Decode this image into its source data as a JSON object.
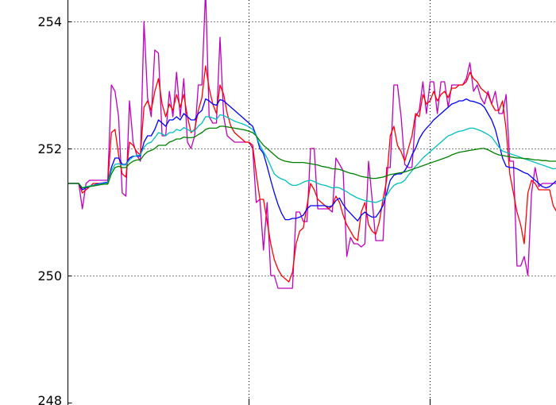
{
  "chart_data": {
    "type": "line",
    "title": "",
    "xlabel": "",
    "ylabel": "",
    "grid": true,
    "legend": "none",
    "xlim": [
      0,
      142
    ],
    "ylim": [
      248,
      254.5
    ],
    "y_ticks": [
      248,
      250,
      252,
      254
    ],
    "y_tick_labels": [
      "248",
      "250",
      "252",
      "254"
    ],
    "x_ticks": [
      50,
      100
    ],
    "series": [
      {
        "color": "#bf00bf",
        "values": [
          251.45,
          251.45,
          251.45,
          251.45,
          251.05,
          251.45,
          251.5,
          251.5,
          251.5,
          251.5,
          251.5,
          251.5,
          253,
          252.9,
          252.5,
          251.3,
          251.25,
          252.75,
          252.1,
          251.9,
          251.8,
          254,
          252.8,
          252.5,
          253.55,
          253.5,
          252.2,
          252.2,
          252.9,
          252.5,
          253.2,
          252.5,
          253.1,
          252.1,
          252,
          252.2,
          253,
          253,
          254.5,
          252.5,
          252.4,
          252.4,
          253.75,
          252.5,
          252.2,
          252.15,
          252.1,
          252.1,
          252.1,
          252.1,
          252.1,
          252,
          251.15,
          251.2,
          250.4,
          251.15,
          250,
          250,
          249.8,
          249.8,
          249.8,
          249.8,
          249.8,
          251,
          251,
          250.85,
          250.85,
          252,
          252,
          251.05,
          251.05,
          251.05,
          251.05,
          251,
          251.85,
          251.75,
          251.65,
          250.3,
          250.6,
          250.5,
          250.5,
          250.45,
          250.5,
          251.8,
          251.2,
          250.55,
          250.55,
          250.55,
          251.7,
          251.7,
          253,
          253,
          252.5,
          251.75,
          251.7,
          251.7,
          252.5,
          252.6,
          253.05,
          252.55,
          253.05,
          253.05,
          252.55,
          253.05,
          253.05,
          252.65,
          253,
          253,
          253,
          253,
          253.1,
          253.35,
          252.9,
          253,
          252.8,
          252.7,
          252.9,
          252.7,
          252.9,
          252.55,
          252.55,
          252.85,
          251.8,
          251.8,
          250.15,
          250.15,
          250.3,
          250,
          251.3,
          251.7,
          251.4,
          251.45,
          251.45,
          251.45,
          251.45,
          251.45,
          250.8,
          250.8,
          250.8,
          251.6,
          251.6,
          251.75,
          251.55,
          252.7
        ]
      },
      {
        "color": "#ff0000",
        "values": [
          251.45,
          251.45,
          251.45,
          251.45,
          251.3,
          251.35,
          251.4,
          251.45,
          251.45,
          251.45,
          251.45,
          251.45,
          252.25,
          252.3,
          251.9,
          251.6,
          251.55,
          252.1,
          252.05,
          251.95,
          251.9,
          252.65,
          252.75,
          252.6,
          252.9,
          253.1,
          252.7,
          252.5,
          252.7,
          252.6,
          252.85,
          252.65,
          252.85,
          252.5,
          252.25,
          252.3,
          252.6,
          252.8,
          253.3,
          252.95,
          252.7,
          252.55,
          253,
          252.85,
          252.55,
          252.35,
          252.25,
          252.2,
          252.15,
          252.1,
          252.1,
          252.05,
          251.6,
          251.2,
          251.2,
          250.85,
          250.5,
          250.25,
          250.1,
          250,
          249.95,
          249.9,
          250.05,
          250.5,
          250.7,
          250.75,
          251.1,
          251.45,
          251.35,
          251.2,
          251.15,
          251.1,
          251.05,
          251.1,
          251.25,
          251.15,
          250.95,
          250.8,
          250.7,
          250.6,
          250.55,
          251,
          251.15,
          250.8,
          250.7,
          250.65,
          250.85,
          251.2,
          251.5,
          252.2,
          252.35,
          252.05,
          251.95,
          251.8,
          252,
          252.2,
          252.55,
          252.5,
          252.85,
          252.7,
          252.75,
          252.9,
          252.75,
          252.85,
          252.9,
          252.8,
          252.95,
          252.95,
          253,
          253,
          253.05,
          253.2,
          253.1,
          253.05,
          252.95,
          252.9,
          252.85,
          252.7,
          252.6,
          252.6,
          252.75,
          252.3,
          251.6,
          251.3,
          251,
          250.8,
          250.5,
          251.3,
          251.5,
          251.45,
          251.35,
          251.35,
          251.35,
          251.35,
          251.1,
          251,
          251,
          251.3,
          251.45,
          251.55,
          251.55,
          252.05
        ]
      },
      {
        "color": "#0000ff",
        "values": [
          251.45,
          251.45,
          251.45,
          251.45,
          251.35,
          251.38,
          251.4,
          251.42,
          251.44,
          251.45,
          251.46,
          251.47,
          251.7,
          251.85,
          251.85,
          251.75,
          251.75,
          251.85,
          251.88,
          251.88,
          251.88,
          252.1,
          252.2,
          252.2,
          252.3,
          252.45,
          252.4,
          252.35,
          252.45,
          252.45,
          252.5,
          252.45,
          252.55,
          252.5,
          252.45,
          252.45,
          252.55,
          252.6,
          252.78,
          252.75,
          252.7,
          252.68,
          252.77,
          252.75,
          252.7,
          252.65,
          252.6,
          252.55,
          252.5,
          252.45,
          252.4,
          252.35,
          252.2,
          252,
          251.92,
          251.72,
          251.5,
          251.3,
          251.12,
          250.98,
          250.88,
          250.88,
          250.9,
          250.9,
          250.92,
          250.95,
          251.05,
          251.1,
          251.1,
          251.1,
          251.1,
          251.1,
          251.08,
          251.1,
          251.18,
          251.22,
          251.12,
          251.04,
          250.98,
          250.92,
          250.86,
          250.95,
          251,
          250.95,
          250.92,
          250.92,
          251,
          251.1,
          251.3,
          251.5,
          251.58,
          251.6,
          251.6,
          251.65,
          251.75,
          251.9,
          252,
          252.15,
          252.25,
          252.32,
          252.38,
          252.45,
          252.5,
          252.55,
          252.6,
          252.65,
          252.7,
          252.72,
          252.75,
          252.75,
          252.78,
          252.75,
          252.74,
          252.72,
          252.7,
          252.65,
          252.55,
          252.45,
          252.3,
          252.08,
          251.85,
          251.72,
          251.7,
          251.7,
          251.68,
          251.65,
          251.62,
          251.6,
          251.55,
          251.5,
          251.45,
          251.4,
          251.38,
          251.4,
          251.45,
          251.5,
          251.58,
          251.65
        ]
      },
      {
        "color": "#00bfbf",
        "values": [
          251.45,
          251.45,
          251.45,
          251.45,
          251.38,
          251.4,
          251.41,
          251.42,
          251.43,
          251.44,
          251.45,
          251.46,
          251.65,
          251.75,
          251.76,
          251.74,
          251.74,
          251.82,
          251.87,
          251.89,
          251.9,
          252.02,
          252.08,
          252.1,
          252.17,
          252.25,
          252.23,
          252.2,
          252.25,
          252.25,
          252.3,
          252.28,
          252.33,
          252.3,
          252.27,
          252.28,
          252.35,
          252.4,
          252.5,
          252.5,
          252.48,
          252.46,
          252.53,
          252.52,
          252.49,
          252.46,
          252.43,
          252.41,
          252.39,
          252.37,
          252.34,
          252.3,
          252.2,
          252.05,
          251.95,
          251.85,
          251.72,
          251.6,
          251.55,
          251.52,
          251.5,
          251.45,
          251.42,
          251.42,
          251.44,
          251.47,
          251.49,
          251.5,
          251.48,
          251.45,
          251.43,
          251.42,
          251.4,
          251.38,
          251.39,
          251.38,
          251.35,
          251.32,
          251.28,
          251.25,
          251.22,
          251.2,
          251.18,
          251.17,
          251.16,
          251.15,
          251.17,
          251.2,
          251.26,
          251.35,
          251.42,
          251.45,
          251.46,
          251.5,
          251.58,
          251.65,
          251.72,
          251.78,
          251.85,
          251.9,
          251.95,
          252,
          252.05,
          252.1,
          252.15,
          252.2,
          252.22,
          252.25,
          252.27,
          252.28,
          252.3,
          252.32,
          252.32,
          252.3,
          252.28,
          252.25,
          252.22,
          252.18,
          252.1,
          252.02,
          251.96,
          251.94,
          251.92,
          251.9,
          251.88,
          251.86,
          251.84,
          251.82,
          251.8,
          251.78,
          251.76,
          251.74,
          251.72,
          251.7,
          251.68,
          251.69,
          251.7,
          251.72,
          251.75,
          251.78
        ]
      },
      {
        "color": "#008000",
        "values": [
          251.45,
          251.45,
          251.45,
          251.45,
          251.38,
          251.39,
          251.4,
          251.41,
          251.42,
          251.43,
          251.44,
          251.44,
          251.6,
          251.7,
          251.72,
          251.7,
          251.7,
          251.76,
          251.8,
          251.82,
          251.82,
          251.9,
          251.95,
          251.97,
          252,
          252.05,
          252.05,
          252.05,
          252.1,
          252.12,
          252.15,
          252.15,
          252.18,
          252.17,
          252.17,
          252.18,
          252.22,
          252.25,
          252.3,
          252.32,
          252.32,
          252.32,
          252.35,
          252.35,
          252.34,
          252.33,
          252.32,
          252.31,
          252.3,
          252.29,
          252.27,
          252.25,
          252.2,
          252.12,
          252.05,
          252,
          251.95,
          251.9,
          251.85,
          251.82,
          251.8,
          251.79,
          251.78,
          251.78,
          251.78,
          251.78,
          251.77,
          251.76,
          251.75,
          251.74,
          251.72,
          251.71,
          251.7,
          251.68,
          251.68,
          251.67,
          251.65,
          251.63,
          251.61,
          251.6,
          251.58,
          251.56,
          251.55,
          251.54,
          251.53,
          251.53,
          251.54,
          251.55,
          251.57,
          251.59,
          251.6,
          251.61,
          251.62,
          251.63,
          251.65,
          251.67,
          251.69,
          251.71,
          251.73,
          251.75,
          251.77,
          251.79,
          251.81,
          251.83,
          251.85,
          251.87,
          251.9,
          251.92,
          251.94,
          251.95,
          251.96,
          251.97,
          251.98,
          251.99,
          252,
          252,
          251.98,
          251.95,
          251.92,
          251.9,
          251.89,
          251.88,
          251.87,
          251.86,
          251.85,
          251.85,
          251.84,
          251.84,
          251.83,
          251.82,
          251.82,
          251.81,
          251.81,
          251.8,
          251.8,
          251.8,
          251.79,
          251.79,
          251.79,
          251.79
        ]
      }
    ]
  }
}
